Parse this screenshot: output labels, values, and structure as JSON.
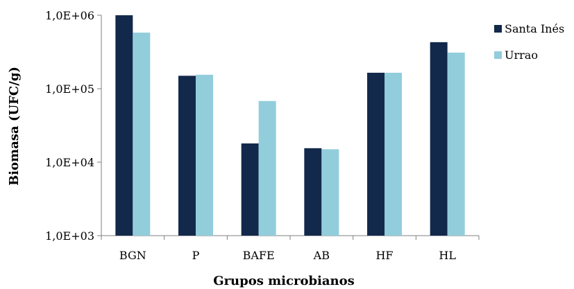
{
  "chart_data": {
    "type": "bar",
    "title": "",
    "xlabel": "Grupos microbianos",
    "ylabel": "Biomasa (UFC/g)",
    "yscale": "log",
    "ylim": [
      1000,
      1000000
    ],
    "yticks": [
      1000,
      10000,
      100000,
      1000000
    ],
    "ytick_labels": [
      "1,0E+03",
      "1,0E+04",
      "1,0E+05",
      "1,0E+06"
    ],
    "categories": [
      "BGN",
      "P",
      "BAFE",
      "AB",
      "HF",
      "HL"
    ],
    "series": [
      {
        "name": "Santa Inés",
        "color": "#13294b",
        "values": [
          1000000,
          150000,
          18000,
          15500,
          165000,
          430000
        ]
      },
      {
        "name": "Urrao",
        "color": "#92cddc",
        "values": [
          580000,
          155000,
          68000,
          15000,
          165000,
          310000
        ]
      }
    ],
    "grid": false,
    "legend": "right"
  }
}
